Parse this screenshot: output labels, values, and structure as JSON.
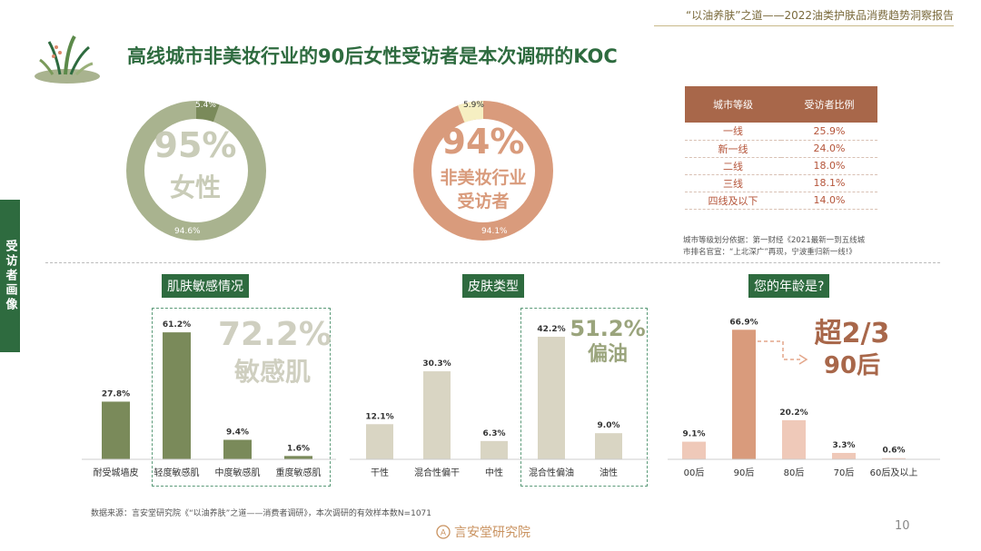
{
  "header": {
    "report_title": "“以油养肤”之道——2022油类护肤品消费趋势洞察报告",
    "main_title": "高线城市非美妆行业的90后女性受访者是本次调研的KOC",
    "side_tab": "受访者画像"
  },
  "colors": {
    "green_dark": "#2e6b3f",
    "sage": "#a9b38f",
    "olive_bar": "#7a8a5a",
    "beige_bar": "#d9d5c3",
    "terracotta": "#d99b7c",
    "brown": "#a8674a",
    "pink_bar": "#efc9b9"
  },
  "donut_gender": {
    "big_value": "95%",
    "big_label": "女性",
    "main_pct_label": "94.6%",
    "minor_pct_label": "5.4%"
  },
  "donut_industry": {
    "big_value": "94%",
    "big_label_line1": "非美妆行业",
    "big_label_line2": "受访者",
    "main_pct_label": "94.1%",
    "minor_pct_label": "5.9%"
  },
  "city_table": {
    "headers": [
      "城市等级",
      "受访者比例"
    ],
    "rows": [
      [
        "一线",
        "25.9%"
      ],
      [
        "新一线",
        "24.0%"
      ],
      [
        "二线",
        "18.0%"
      ],
      [
        "三线",
        "18.1%"
      ],
      [
        "四线及以下",
        "14.0%"
      ]
    ],
    "note_line1": "城市等级划分依据：第一财经《2021最新一到五线城",
    "note_line2": "市排名官宣：“上北深广”再现，宁波重归新一线!》"
  },
  "chart_data": [
    {
      "type": "bar",
      "title": "肌肤敏感情况",
      "categories": [
        "耐受城墙皮",
        "轻度敏感肌",
        "中度敏感肌",
        "重度敏感肌"
      ],
      "values": [
        27.8,
        61.2,
        9.4,
        1.6
      ],
      "value_labels": [
        "27.8%",
        "61.2%",
        "9.4%",
        "1.6%"
      ],
      "ylim": [
        0,
        70
      ],
      "highlight_big": "72.2%",
      "highlight_label": "敏感肌"
    },
    {
      "type": "bar",
      "title": "皮肤类型",
      "categories": [
        "干性",
        "混合性偏干",
        "中性",
        "混合性偏油",
        "油性"
      ],
      "values": [
        12.1,
        30.3,
        6.3,
        42.2,
        9.0
      ],
      "value_labels": [
        "12.1%",
        "30.3%",
        "6.3%",
        "42.2%",
        "9.0%"
      ],
      "ylim": [
        0,
        50
      ],
      "highlight_big": "51.2%",
      "highlight_label": "偏油"
    },
    {
      "type": "bar",
      "title": "您的年龄是?",
      "categories": [
        "00后",
        "90后",
        "80后",
        "70后",
        "60后及以上"
      ],
      "values": [
        9.1,
        66.9,
        20.2,
        3.3,
        0.6
      ],
      "value_labels": [
        "9.1%",
        "66.9%",
        "20.2%",
        "3.3%",
        "0.6%"
      ],
      "ylim": [
        0,
        75
      ],
      "highlight_big": "超2/3",
      "highlight_label": "90后"
    }
  ],
  "footer": {
    "source": "数据来源：言安堂研究院《“以油养肤”之道——消费者调研》，本次调研的有效样本数N=1071",
    "brand": "言安堂研究院",
    "page": "10"
  }
}
